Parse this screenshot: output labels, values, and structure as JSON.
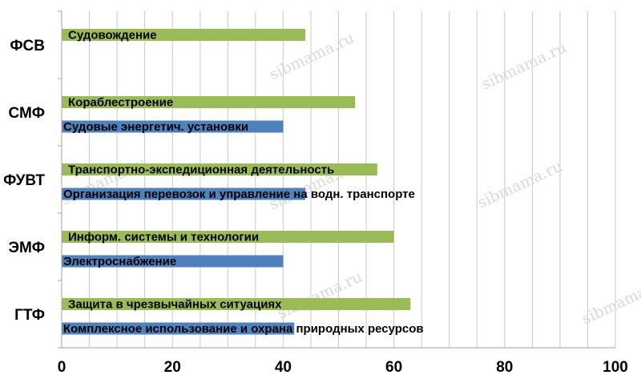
{
  "chart_data": {
    "type": "bar",
    "orientation": "horizontal",
    "categories": [
      "ФСВ",
      "СМФ",
      "ФУВТ",
      "ЭМФ",
      "ГТФ"
    ],
    "series": [
      {
        "color": "#9bbb59",
        "values": [
          44,
          53,
          57,
          60,
          63
        ],
        "labels": [
          "Судовождение",
          "Кораблестроение",
          "Транспортно-экспедиционная деятельность",
          "Информ. системы и технологии",
          "Защита в чрезвычайных ситуациях"
        ]
      },
      {
        "color": "#4f81bd",
        "values": [
          null,
          40,
          44,
          40,
          42
        ],
        "labels": [
          "",
          "Судовые энергетич. установки",
          "Организация перевозок и управление на водн. транспорте",
          "Электроснабжение",
          "Комплексное использование и охрана природных ресурсов"
        ]
      }
    ],
    "xlim": [
      0,
      100
    ],
    "x_ticks": [
      0,
      20,
      40,
      60,
      80,
      100
    ],
    "grid": true,
    "title": "",
    "xlabel": "",
    "ylabel": "",
    "watermark": "sibmama.ru"
  }
}
